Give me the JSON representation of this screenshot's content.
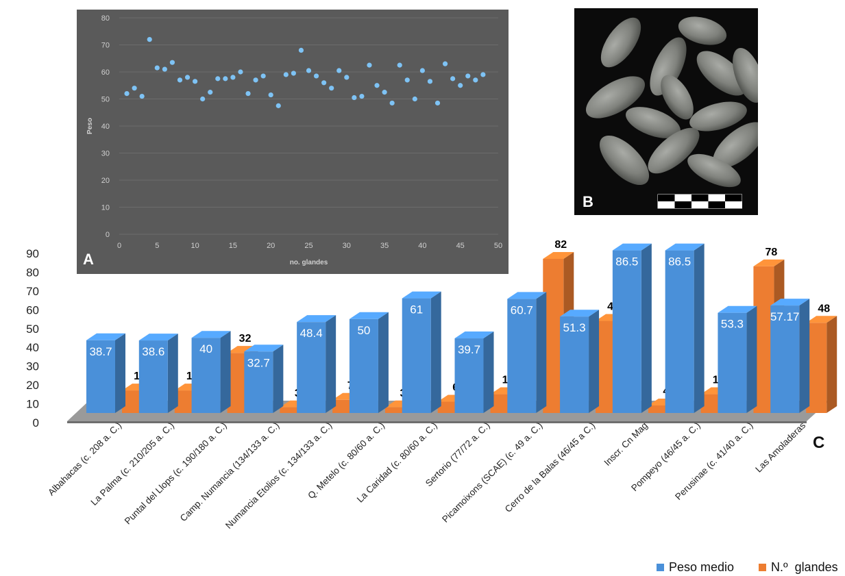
{
  "chart_data": [
    {
      "panel": "A",
      "type": "scatter",
      "xlabel": "no. glandes",
      "ylabel": "Peso",
      "xlim": [
        0,
        50
      ],
      "ylim": [
        0,
        80
      ],
      "xticks": [
        0,
        5,
        10,
        15,
        20,
        25,
        30,
        35,
        40,
        45,
        50
      ],
      "yticks": [
        0,
        10,
        20,
        30,
        40,
        50,
        60,
        70,
        80
      ],
      "grid": true,
      "colors": {
        "background": "#5a5a5a",
        "point": "#7ec3f5",
        "grid": "#6c6c6c",
        "text": "#d0d0d0"
      },
      "points": [
        [
          1,
          52
        ],
        [
          2,
          54
        ],
        [
          3,
          51
        ],
        [
          4,
          72
        ],
        [
          5,
          61.5
        ],
        [
          6,
          61
        ],
        [
          7,
          63.5
        ],
        [
          8,
          57
        ],
        [
          9,
          58
        ],
        [
          10,
          56.5
        ],
        [
          11,
          50
        ],
        [
          12,
          52.5
        ],
        [
          13,
          57.5
        ],
        [
          14,
          57.5
        ],
        [
          15,
          58
        ],
        [
          16,
          60
        ],
        [
          17,
          52
        ],
        [
          18,
          57
        ],
        [
          19,
          58.5
        ],
        [
          20,
          51.5
        ],
        [
          21,
          47.5
        ],
        [
          22,
          59
        ],
        [
          23,
          59.5
        ],
        [
          24,
          68
        ],
        [
          25,
          60.5
        ],
        [
          26,
          58.5
        ],
        [
          27,
          56
        ],
        [
          28,
          54
        ],
        [
          29,
          60.5
        ],
        [
          30,
          58
        ],
        [
          31,
          50.5
        ],
        [
          32,
          51
        ],
        [
          33,
          62.5
        ],
        [
          34,
          55
        ],
        [
          35,
          52.5
        ],
        [
          36,
          48.5
        ],
        [
          37,
          62.5
        ],
        [
          38,
          57
        ],
        [
          39,
          50
        ],
        [
          40,
          60.5
        ],
        [
          41,
          56.5
        ],
        [
          42,
          48.5
        ],
        [
          43,
          63
        ],
        [
          44,
          57.5
        ],
        [
          45,
          55
        ],
        [
          46,
          58.5
        ],
        [
          47,
          57
        ],
        [
          48,
          59
        ]
      ]
    },
    {
      "panel": "C",
      "type": "bar",
      "ylim": [
        0,
        90
      ],
      "yticks": [
        0,
        10,
        20,
        30,
        40,
        50,
        60,
        70,
        80,
        90
      ],
      "legend_position": "bottom-right",
      "categories": [
        "Albahacas (c. 208 a. C.)",
        "La Palma (c. 210/205 a. C.)",
        "Puntal del Llops (c. 190/180 a. C.)",
        "Camp. Numancia (134/133 a. C.)",
        "Numancia Etolios (c. 134/133 a. C.)",
        "Q. Metelo (c. 80/60 a. C.)",
        "La Caridad  (c. 80/60 a. C.)",
        "Sertorio (77/72 a. C.)",
        "Picamoixons (SCAE) (c. 49 a. C.)",
        "Cerro de la Balas (46/45 a C.)",
        "Inscr. Cn Mag",
        "Pompeyo (46/45 a. C.)",
        "Perusinae (c. 41/40 a. C.)",
        "Las Amoladeras"
      ],
      "series": [
        {
          "name": "Peso medio",
          "color": "#4a90d9",
          "values": [
            38.7,
            38.6,
            40,
            32.7,
            48.4,
            50,
            61,
            39.7,
            60.7,
            51.3,
            86.5,
            86.5,
            53.3,
            57.17
          ],
          "labels": [
            "38.7",
            "38.6",
            "40",
            "32.7",
            "48.4",
            "50",
            "61",
            "39.7",
            "60.7",
            "51.3",
            "86.5",
            "86.5",
            "53.3",
            "57.17"
          ]
        },
        {
          "name": "N.º  glandes",
          "color": "#ed7d31",
          "values": [
            12,
            12,
            32,
            3,
            7,
            3,
            6,
            10,
            82,
            49,
            4,
            10,
            78,
            48
          ],
          "labels": [
            "12",
            "12",
            "32",
            "3",
            "7",
            "3",
            "6",
            "10",
            "82",
            "49",
            "4",
            "10",
            "78",
            "48"
          ]
        }
      ]
    }
  ],
  "panel_labels": {
    "a": "A",
    "b": "B",
    "c": "C"
  },
  "legend": {
    "series_1": "Peso medio",
    "series_2": "N.º  glandes"
  }
}
